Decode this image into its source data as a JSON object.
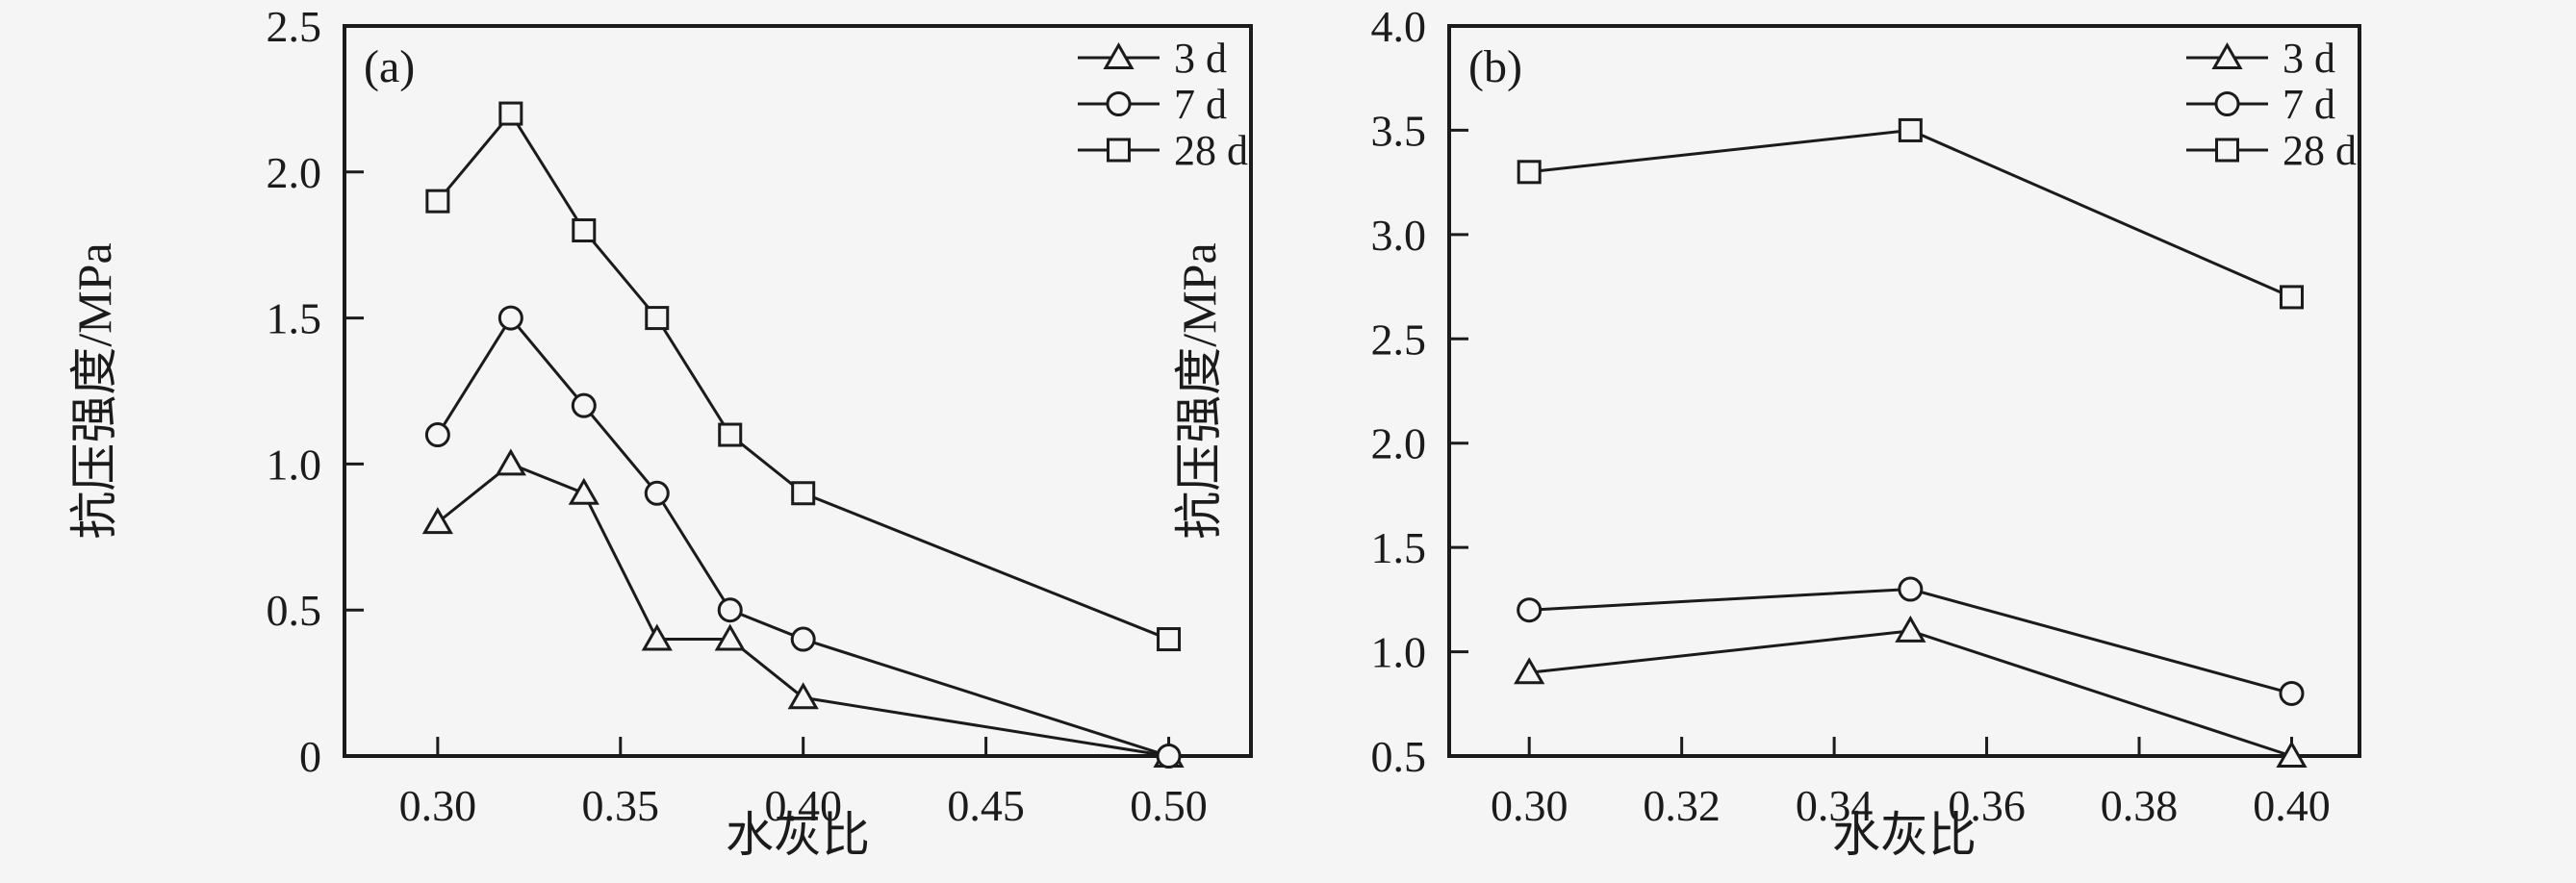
{
  "style": {
    "background": "#f5f5f5",
    "line_color": "#1b1b1b"
  },
  "chart_data": [
    {
      "type": "line",
      "panel_label": "(a)",
      "xlabel": "水灰比",
      "ylabel": "抗压强度/MPa",
      "x": [
        0.3,
        0.32,
        0.34,
        0.36,
        0.38,
        0.4,
        0.5
      ],
      "series": [
        {
          "name": "3 d",
          "marker": "triangle",
          "values": [
            0.8,
            1.0,
            0.9,
            0.4,
            0.4,
            0.2,
            0.0
          ]
        },
        {
          "name": "7 d",
          "marker": "circle",
          "values": [
            1.1,
            1.5,
            1.2,
            0.9,
            0.5,
            0.4,
            0.0
          ]
        },
        {
          "name": "28 d",
          "marker": "square",
          "values": [
            1.9,
            2.2,
            1.8,
            1.5,
            1.1,
            0.9,
            0.4
          ]
        }
      ],
      "xlim": [
        0.2745,
        0.5225
      ],
      "ylim": [
        0,
        2.5
      ],
      "xticks": [
        0.3,
        0.35,
        0.4,
        0.45,
        0.5
      ],
      "xtick_labels": [
        "0.30",
        "0.35",
        "0.40",
        "0.45",
        "0.50"
      ],
      "yticks": [
        0,
        0.5,
        1.0,
        1.5,
        2.0,
        2.5
      ],
      "ytick_labels": [
        "0",
        "0.5",
        "1.0",
        "1.5",
        "2.0",
        "2.5"
      ],
      "grid": false,
      "legend_position": "top-right"
    },
    {
      "type": "line",
      "panel_label": "(b)",
      "xlabel": "水灰比",
      "ylabel": "抗压强度/MPa",
      "x": [
        0.3,
        0.35,
        0.4
      ],
      "series": [
        {
          "name": "3 d",
          "marker": "triangle",
          "values": [
            0.9,
            1.1,
            0.5
          ]
        },
        {
          "name": "7 d",
          "marker": "circle",
          "values": [
            1.2,
            1.3,
            0.8
          ]
        },
        {
          "name": "28 d",
          "marker": "square",
          "values": [
            3.3,
            3.5,
            2.7
          ]
        }
      ],
      "xlim": [
        0.2895,
        0.4089
      ],
      "ylim": [
        0.5,
        4.0
      ],
      "xticks": [
        0.3,
        0.32,
        0.34,
        0.36,
        0.38,
        0.4
      ],
      "xtick_labels": [
        "0.30",
        "0.32",
        "0.34",
        "0.36",
        "0.38",
        "0.40"
      ],
      "yticks": [
        0.5,
        1.0,
        1.5,
        2.0,
        2.5,
        3.0,
        3.5,
        4.0
      ],
      "ytick_labels": [
        "0.5",
        "1.0",
        "1.5",
        "2.0",
        "2.5",
        "3.0",
        "3.5",
        "4.0"
      ],
      "grid": false,
      "legend_position": "top-right"
    }
  ]
}
